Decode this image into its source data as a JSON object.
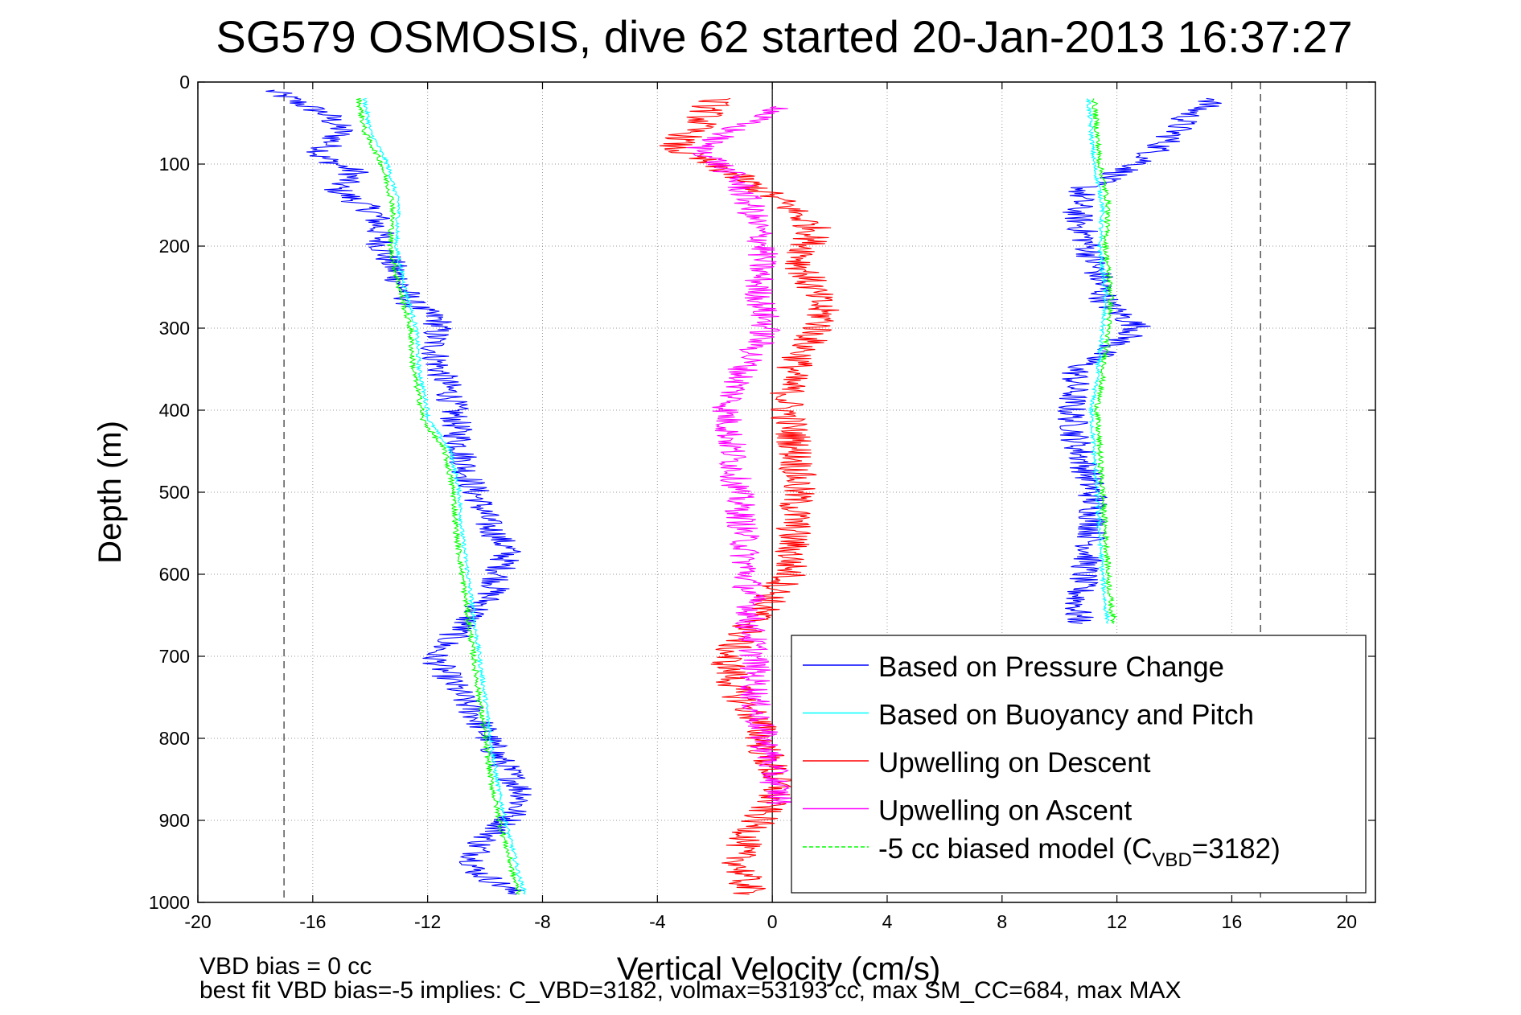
{
  "chart_data": {
    "type": "line",
    "title": "SG579 OSMOSIS, dive 62 started 20-Jan-2013 16:37:27",
    "xlabel": "Vertical Velocity (cm/s)",
    "ylabel": "Depth (m)",
    "xlim": [
      -20,
      21
    ],
    "ylim": [
      1000,
      0
    ],
    "y_reversed": true,
    "grid": true,
    "x_ticks": [
      -20,
      -16,
      -12,
      -8,
      -4,
      0,
      4,
      8,
      12,
      16,
      20
    ],
    "y_ticks": [
      0,
      100,
      200,
      300,
      400,
      500,
      600,
      700,
      800,
      900,
      1000
    ],
    "reference_lines": [
      {
        "style": "dashed",
        "color": "#555555",
        "x": -17
      },
      {
        "style": "dashed",
        "color": "#555555",
        "x": 17
      },
      {
        "style": "solid",
        "color": "#000000",
        "x": 0
      }
    ],
    "legend_position": "bottom-right",
    "series": [
      {
        "name": "Based on Pressure Change",
        "color": "#0000ff",
        "descent": {
          "x": [
            -17.5,
            -15.5,
            -15,
            -15.8,
            -14.5,
            -15.2,
            -13.8,
            -13.6,
            -13,
            -12.6,
            -11.6,
            -11.8,
            -11.6,
            -11.2,
            -11,
            -10.8,
            -10.6,
            -10.2,
            -9.9,
            -9.2,
            -9.7,
            -10.7,
            -11.8,
            -11,
            -10.2,
            -9.6,
            -8.6,
            -9.2,
            -10.2,
            -10.4,
            -8.9
          ],
          "y": [
            10,
            40,
            60,
            90,
            110,
            130,
            160,
            200,
            240,
            270,
            290,
            320,
            350,
            380,
            420,
            450,
            480,
            510,
            540,
            570,
            620,
            660,
            700,
            740,
            780,
            820,
            870,
            900,
            930,
            960,
            990
          ]
        },
        "ascent": {
          "x": [
            15.5,
            14.5,
            13.8,
            12.8,
            10.8,
            10.6,
            11,
            11.4,
            11.6,
            12.8,
            10.6,
            10.4,
            10.6,
            11,
            11.2,
            11.2,
            11,
            10.7,
            10.6,
            10.8
          ],
          "y": [
            20,
            40,
            70,
            100,
            130,
            160,
            200,
            240,
            270,
            300,
            350,
            400,
            440,
            480,
            510,
            540,
            580,
            620,
            650,
            660
          ]
        }
      },
      {
        "name": "Based on Buoyancy and Pitch",
        "color": "#00ffff",
        "descent": {
          "x": [
            -14.2,
            -14,
            -13.4,
            -13,
            -13.1,
            -12.8,
            -12.4,
            -12.3,
            -12,
            -12,
            -11.2,
            -10.9,
            -10.8,
            -10.6,
            -10.4,
            -10.2,
            -10,
            -9.8,
            -9.6,
            -9.3,
            -9,
            -8.8,
            -8.6
          ],
          "y": [
            20,
            60,
            100,
            150,
            200,
            250,
            300,
            350,
            400,
            410,
            450,
            500,
            550,
            600,
            650,
            700,
            750,
            800,
            850,
            900,
            940,
            970,
            990
          ]
        },
        "ascent": {
          "x": [
            11,
            11.2,
            11.5,
            11.4,
            11.6,
            11.5,
            11.3,
            11.1,
            11.2,
            11.3,
            11.4,
            11.5,
            11.6,
            11.7
          ],
          "y": [
            20,
            100,
            150,
            200,
            260,
            300,
            360,
            400,
            450,
            500,
            550,
            600,
            640,
            660
          ]
        }
      },
      {
        "name": "Upwelling on Descent",
        "color": "#ff0000",
        "descent": {
          "x": [
            -2,
            -2.5,
            -3.5,
            -1.5,
            0.5,
            1.5,
            1,
            1.5,
            1.8,
            1.2,
            0.6,
            0.5,
            0.8,
            0.9,
            0.8,
            0.7,
            0.6,
            -0.5,
            -1.6,
            -1.3,
            -0.5,
            -0.2,
            0.2,
            -0.5,
            -1.2,
            -1,
            -0.8
          ],
          "y": [
            20,
            50,
            80,
            110,
            150,
            180,
            220,
            260,
            290,
            320,
            360,
            400,
            440,
            480,
            520,
            560,
            600,
            650,
            700,
            740,
            780,
            820,
            860,
            900,
            940,
            970,
            990
          ]
        }
      },
      {
        "name": "Upwelling on Ascent",
        "color": "#ff00ff",
        "ascent": {
          "x": [
            0.5,
            -1,
            -2.5,
            -1.2,
            -0.8,
            -0.3,
            -0.5,
            -0.2,
            -1,
            -1.6,
            -1.4,
            -1.2,
            -1,
            -0.9,
            -0.7,
            -0.8,
            -0.6,
            -0.6,
            0.3
          ],
          "y": [
            30,
            50,
            80,
            120,
            150,
            200,
            250,
            300,
            350,
            400,
            450,
            500,
            550,
            600,
            640,
            660,
            700,
            760,
            880
          ]
        }
      },
      {
        "name": "-5 cc biased model (C",
        "name_sub": "VBD",
        "name_tail": "=3182)",
        "color": "#00ff00",
        "style": "dashed",
        "descent": {
          "x": [
            -14.4,
            -14.2,
            -13.6,
            -13.2,
            -13.3,
            -13,
            -12.6,
            -12.5,
            -12.2,
            -12.2,
            -11.4,
            -11.1,
            -11,
            -10.8,
            -10.6,
            -10.4,
            -10.2,
            -10,
            -9.8,
            -9.5,
            -9.2,
            -9,
            -8.8
          ],
          "y": [
            20,
            60,
            100,
            150,
            200,
            250,
            300,
            350,
            400,
            410,
            450,
            500,
            550,
            600,
            650,
            700,
            750,
            800,
            850,
            900,
            940,
            970,
            990
          ]
        },
        "ascent": {
          "x": [
            11.2,
            11.4,
            11.7,
            11.6,
            11.8,
            11.7,
            11.5,
            11.3,
            11.4,
            11.5,
            11.6,
            11.7,
            11.8,
            11.9
          ],
          "y": [
            20,
            100,
            150,
            200,
            260,
            300,
            360,
            400,
            450,
            500,
            550,
            600,
            640,
            660
          ]
        }
      }
    ],
    "footer": [
      "VBD bias = 0 cc",
      "best fit VBD bias=-5 implies: C_VBD=3182, volmax=53193 cc, max SM_CC=684, max MAX"
    ]
  }
}
